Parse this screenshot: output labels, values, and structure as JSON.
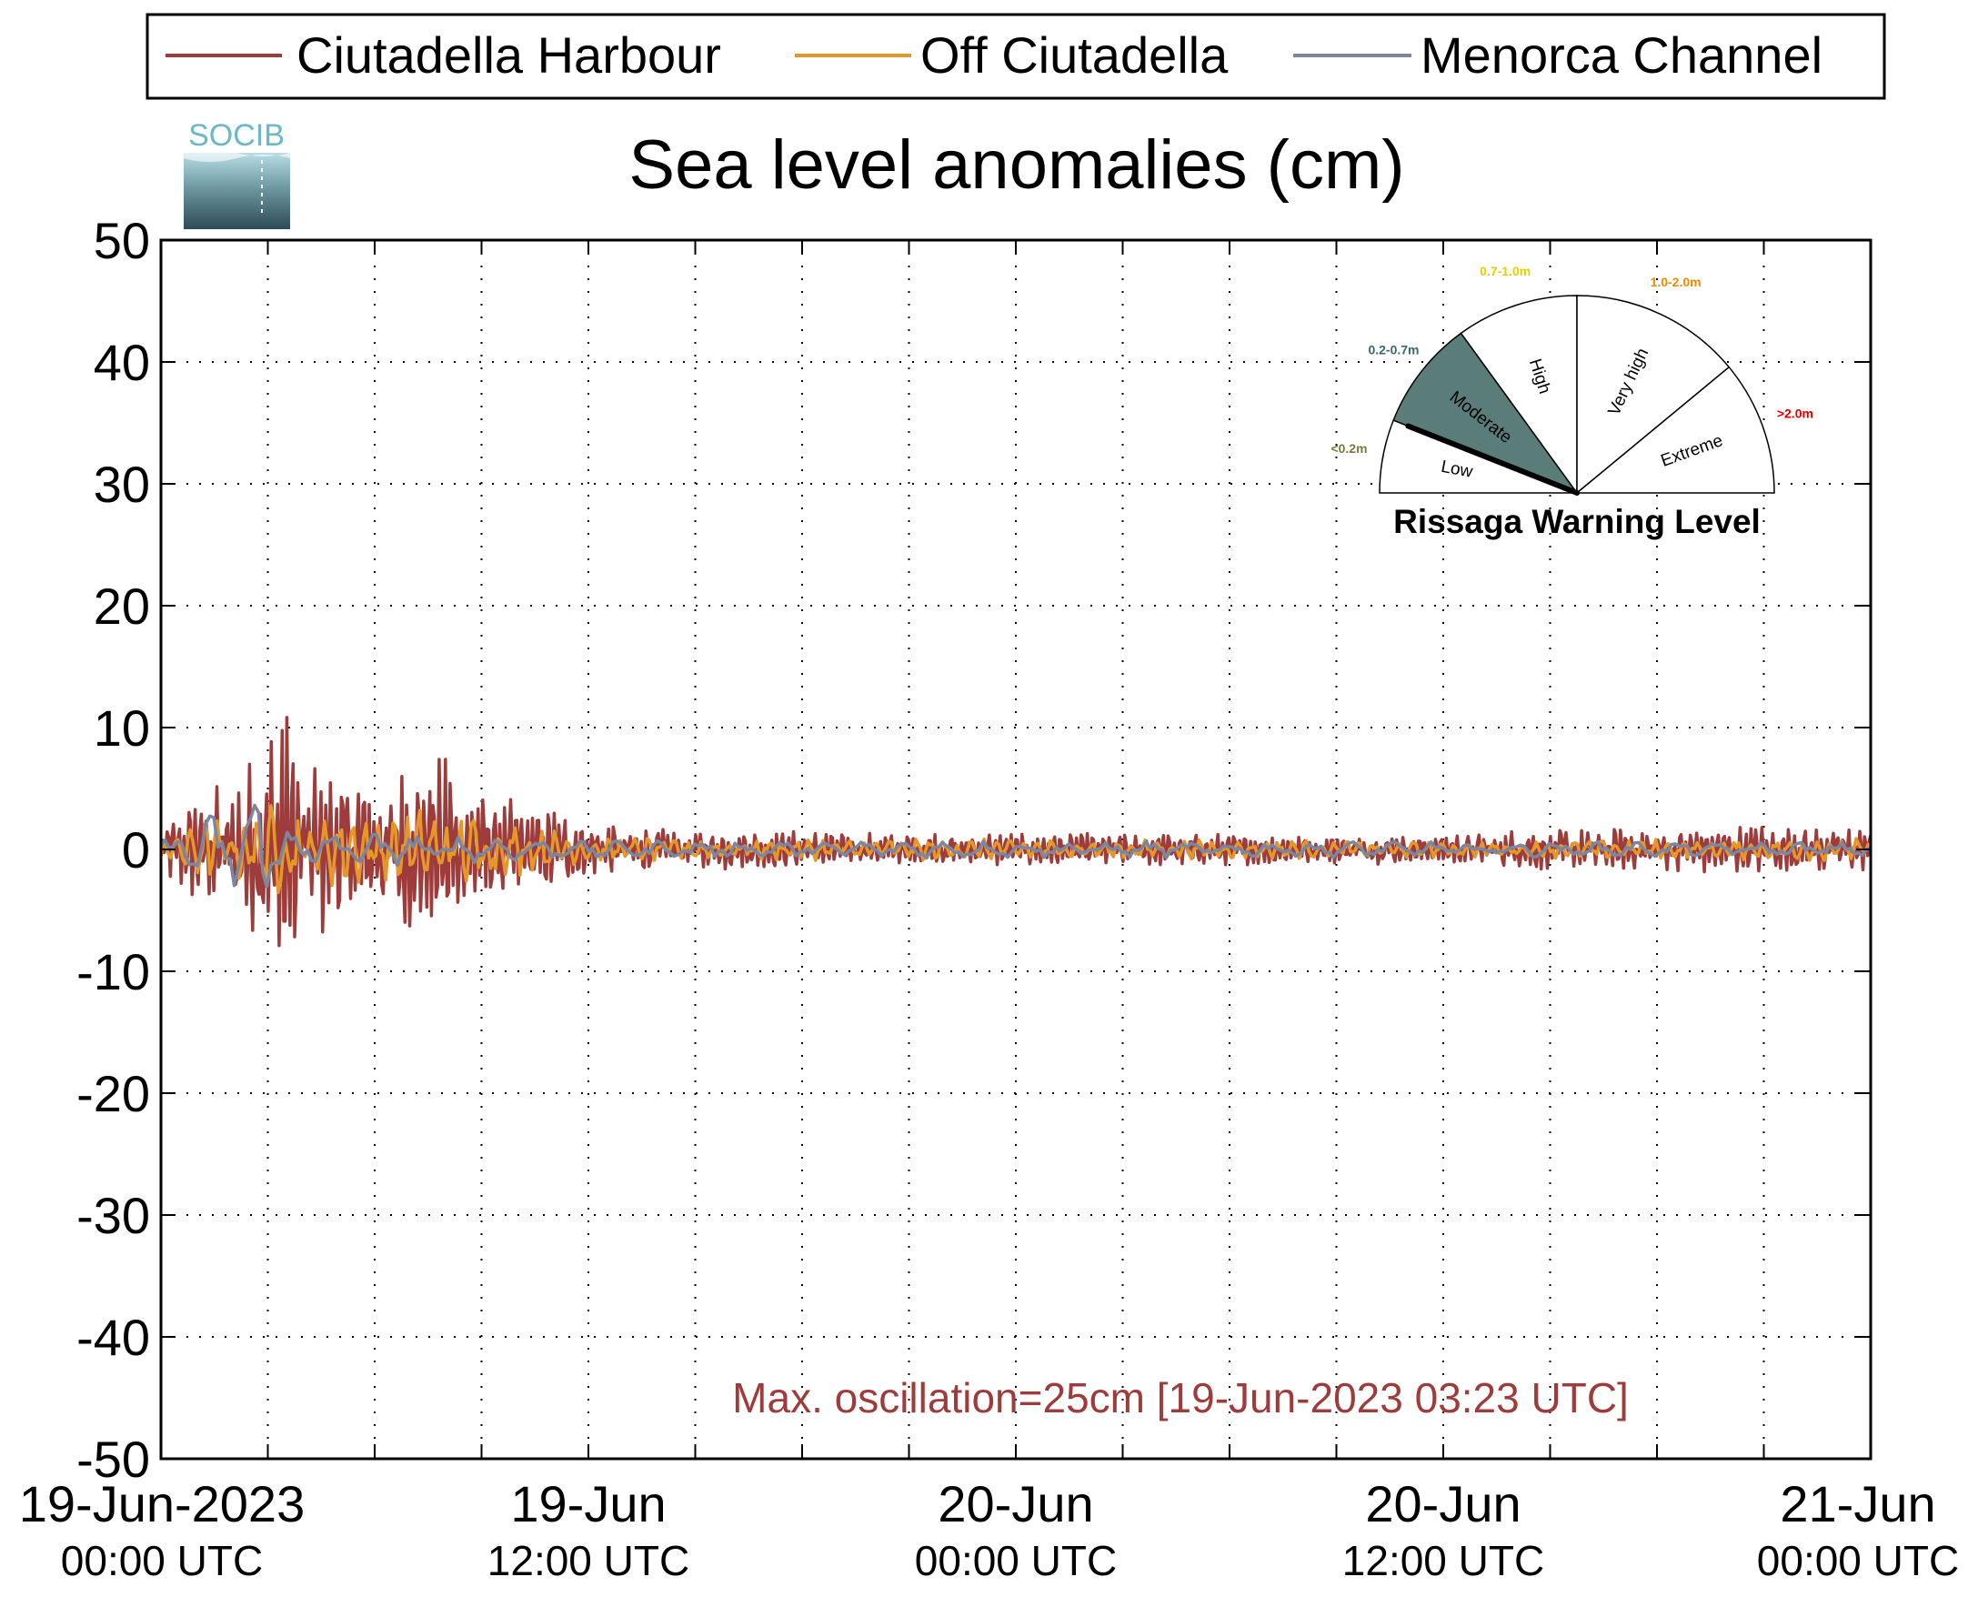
{
  "chart_data": {
    "type": "line",
    "title": "Sea level anomalies (cm)",
    "ylim": [
      -50,
      50
    ],
    "yticks": [
      50,
      40,
      30,
      20,
      10,
      0,
      -10,
      -20,
      -30,
      -40,
      -50
    ],
    "xlim": [
      "2023-06-19T00:00Z",
      "2023-06-21T00:00Z"
    ],
    "xtick_labels": [
      {
        "date": "2023-06-19T00:00Z",
        "line1": "19-Jun-2023",
        "line2": "00:00 UTC"
      },
      {
        "date": "2023-06-19T12:00Z",
        "line1": "19-Jun",
        "line2": "12:00 UTC"
      },
      {
        "date": "2023-06-20T00:00Z",
        "line1": "20-Jun",
        "line2": "00:00 UTC"
      },
      {
        "date": "2023-06-20T12:00Z",
        "line1": "20-Jun",
        "line2": "12:00 UTC"
      },
      {
        "date": "2023-06-21T00:00Z",
        "line1": "21-Jun",
        "line2": "00:00 UTC"
      }
    ],
    "grid": "dotted",
    "legend": {
      "position": "top",
      "entries": [
        {
          "name": "Ciutadella Harbour",
          "color": "#9e3c3c"
        },
        {
          "name": "Off Ciutadella",
          "color": "#e6972a"
        },
        {
          "name": "Menorca Channel",
          "color": "#7a86a2"
        }
      ]
    },
    "series": [
      {
        "name": "Ciutadella Harbour",
        "color": "#9e3c3c",
        "envelope_cm": [
          [
            "2023-06-19T00:00Z",
            2.0
          ],
          [
            "2023-06-19T01:00Z",
            4.5
          ],
          [
            "2023-06-19T02:00Z",
            6.0
          ],
          [
            "2023-06-19T03:00Z",
            9.0
          ],
          [
            "2023-06-19T03:23Z",
            14.5
          ],
          [
            "2023-06-19T04:00Z",
            8.0
          ],
          [
            "2023-06-19T05:00Z",
            7.0
          ],
          [
            "2023-06-19T06:00Z",
            6.0
          ],
          [
            "2023-06-19T07:00Z",
            7.0
          ],
          [
            "2023-06-19T08:00Z",
            9.0
          ],
          [
            "2023-06-19T09:00Z",
            5.0
          ],
          [
            "2023-06-19T10:00Z",
            4.0
          ],
          [
            "2023-06-19T11:00Z",
            3.5
          ],
          [
            "2023-06-19T12:00Z",
            2.2
          ],
          [
            "2023-06-19T18:00Z",
            1.5
          ],
          [
            "2023-06-20T00:00Z",
            1.4
          ],
          [
            "2023-06-20T06:00Z",
            1.3
          ],
          [
            "2023-06-20T12:00Z",
            1.2
          ],
          [
            "2023-06-20T15:00Z",
            1.8
          ],
          [
            "2023-06-20T18:00Z",
            2.0
          ],
          [
            "2023-06-21T00:00Z",
            2.0
          ]
        ]
      },
      {
        "name": "Off Ciutadella",
        "color": "#e6972a",
        "envelope_cm": [
          [
            "2023-06-19T00:00Z",
            1.5
          ],
          [
            "2023-06-19T02:00Z",
            3.0
          ],
          [
            "2023-06-19T03:00Z",
            4.0
          ],
          [
            "2023-06-19T05:00Z",
            3.0
          ],
          [
            "2023-06-19T08:00Z",
            3.5
          ],
          [
            "2023-06-19T12:00Z",
            1.0
          ],
          [
            "2023-06-20T12:00Z",
            0.7
          ],
          [
            "2023-06-21T00:00Z",
            1.0
          ]
        ]
      },
      {
        "name": "Menorca Channel",
        "color": "#7a86a2",
        "envelope_cm": [
          [
            "2023-06-19T00:00Z",
            1.0
          ],
          [
            "2023-06-19T02:40Z",
            5.0
          ],
          [
            "2023-06-19T05:00Z",
            1.5
          ],
          [
            "2023-06-19T12:00Z",
            0.8
          ],
          [
            "2023-06-21T00:00Z",
            0.6
          ]
        ]
      }
    ],
    "annotation": {
      "text": "Max. oscillation=25cm [19-Jun-2023 03:23 UTC]",
      "color": "#9e3c3c"
    }
  },
  "logo": {
    "text": "SOCIB"
  },
  "gauge": {
    "title": "Rissaga Warning Level",
    "current_level": "Moderate",
    "needle_fraction": 0.12,
    "sectors": [
      {
        "name": "Low",
        "range": "<0.2m",
        "color": "#7a7a40"
      },
      {
        "name": "Moderate",
        "range": "0.2-0.7m",
        "color": "#3a6670"
      },
      {
        "name": "High",
        "range": "0.7-1.0m",
        "color": "#e6d000"
      },
      {
        "name": "Very high",
        "range": "1.0-2.0m",
        "color": "#f08a00"
      },
      {
        "name": "Extreme",
        "range": ">2.0m",
        "color": "#e00000"
      }
    ],
    "active_fill": "#5a7d7a"
  }
}
